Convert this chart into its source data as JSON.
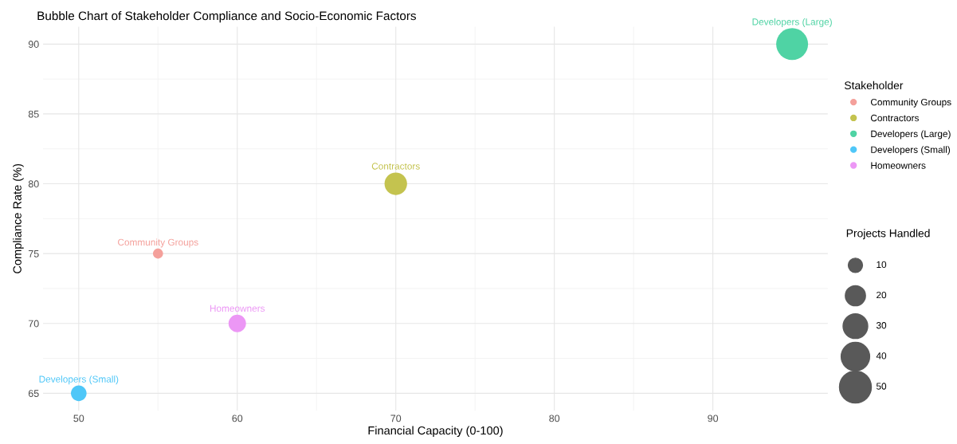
{
  "chart_data": {
    "type": "bubble",
    "title": "Bubble Chart of Stakeholder Compliance and Socio-Economic Factors",
    "xlabel": "Financial Capacity (0-100)",
    "ylabel": "Compliance Rate (%)",
    "legend_title": [
      "Stakeholder",
      "Projects Handled"
    ],
    "series": [
      {
        "name": "Community Groups",
        "color": "#f4a09b",
        "x": [
          55
        ],
        "values": [
          75
        ],
        "sizes": [
          5
        ]
      },
      {
        "name": "Contractors",
        "color": "#c4c34f",
        "x": [
          70
        ],
        "values": [
          80
        ],
        "sizes": [
          25
        ]
      },
      {
        "name": "Developers (Large)",
        "color": "#4fd3a4",
        "x": [
          95
        ],
        "values": [
          90
        ],
        "sizes": [
          50
        ]
      },
      {
        "name": "Developers (Small)",
        "color": "#4fc7f8",
        "x": [
          50
        ],
        "values": [
          65
        ],
        "sizes": [
          12
        ]
      },
      {
        "name": "Homeowners",
        "color": "#ec97f5",
        "x": [
          60
        ],
        "values": [
          70
        ],
        "sizes": [
          15
        ]
      }
    ],
    "size_legend": [
      10,
      20,
      30,
      40,
      50
    ],
    "xlim": [
      47.75,
      97.25
    ],
    "xticks": [
      50,
      60,
      70,
      80,
      90
    ],
    "ylim": [
      63.75,
      91.25
    ],
    "yticks": [
      65,
      70,
      75,
      80,
      85,
      90
    ],
    "grid": true,
    "legend": "right"
  }
}
